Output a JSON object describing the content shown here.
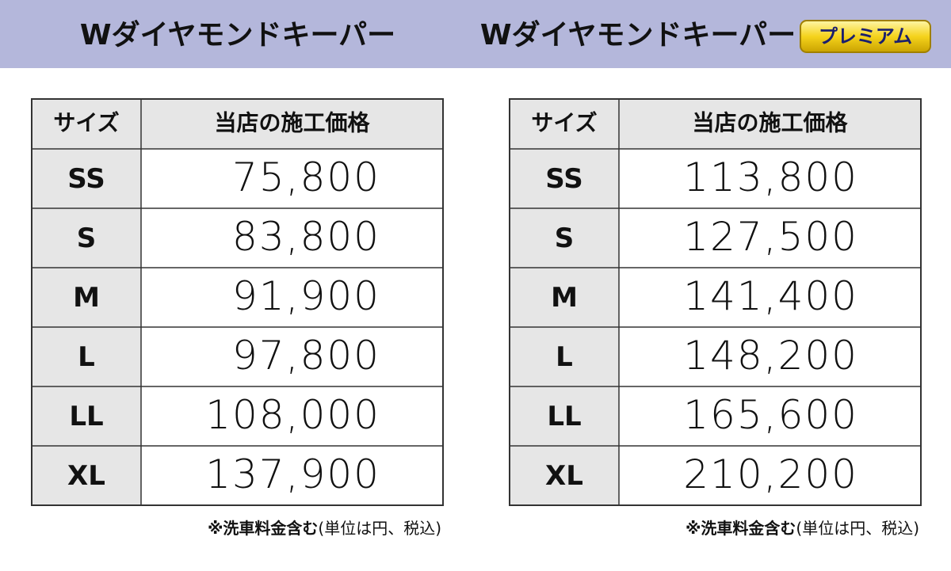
{
  "header": {
    "left_title": "Wダイヤモンドキーパー",
    "right_title": "Wダイヤモンドキーパー",
    "badge": "プレミアム"
  },
  "tables": [
    {
      "columns": [
        "サイズ",
        "当店の施工価格"
      ],
      "rows": [
        [
          "SS",
          "75,800"
        ],
        [
          "S",
          "83,800"
        ],
        [
          "M",
          "91,900"
        ],
        [
          "L",
          "97,800"
        ],
        [
          "LL",
          "108,000"
        ],
        [
          "XL",
          "137,900"
        ]
      ],
      "note_bold": "※洗車料金含む",
      "note": "(単位は円、税込)"
    },
    {
      "columns": [
        "サイズ",
        "当店の施工価格"
      ],
      "rows": [
        [
          "SS",
          "113,800"
        ],
        [
          "S",
          "127,500"
        ],
        [
          "M",
          "141,400"
        ],
        [
          "L",
          "148,200"
        ],
        [
          "LL",
          "165,600"
        ],
        [
          "XL",
          "210,200"
        ]
      ],
      "note_bold": "※洗車料金含む",
      "note": "(単位は円、税込)"
    }
  ]
}
